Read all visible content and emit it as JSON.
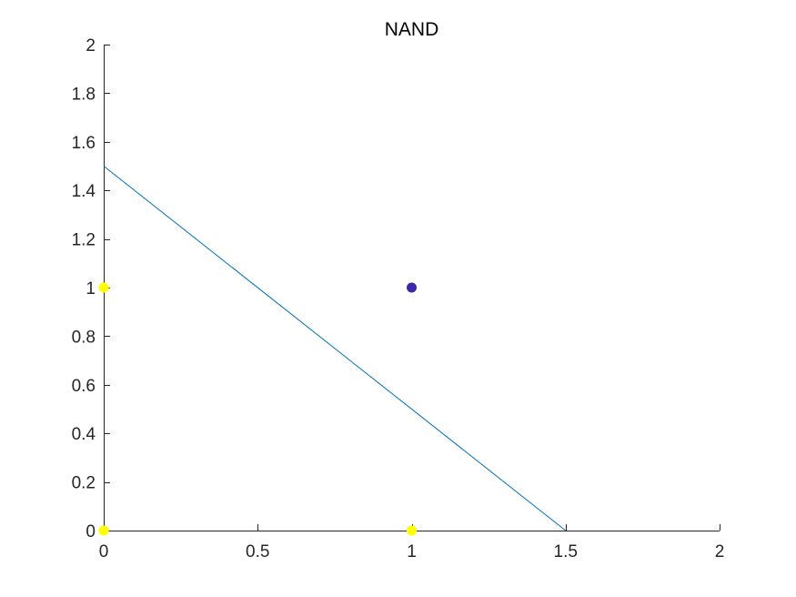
{
  "chart_data": {
    "type": "scatter",
    "title": "NAND",
    "xlabel": "",
    "ylabel": "",
    "xlim": [
      0,
      2
    ],
    "ylim": [
      0,
      2
    ],
    "x_ticks": [
      0,
      0.5,
      1,
      1.5,
      2
    ],
    "x_tick_labels": [
      "0",
      "0.5",
      "1",
      "1.5",
      "2"
    ],
    "y_ticks": [
      0,
      0.2,
      0.4,
      0.6,
      0.8,
      1,
      1.2,
      1.4,
      1.6,
      1.8,
      2
    ],
    "y_tick_labels": [
      "0",
      "0.2",
      "0.4",
      "0.6",
      "0.8",
      "1",
      "1.2",
      "1.4",
      "1.6",
      "1.8",
      "2"
    ],
    "grid": false,
    "points": [
      {
        "x": 0,
        "y": 0,
        "color": "#FFFF00"
      },
      {
        "x": 0,
        "y": 1,
        "color": "#FFFF00"
      },
      {
        "x": 1,
        "y": 0,
        "color": "#FFFF00"
      },
      {
        "x": 1,
        "y": 1,
        "color": "#3D26A8"
      }
    ],
    "line": {
      "x": [
        0,
        1.5
      ],
      "y": [
        1.5,
        0
      ],
      "color": "#0072BD"
    }
  }
}
